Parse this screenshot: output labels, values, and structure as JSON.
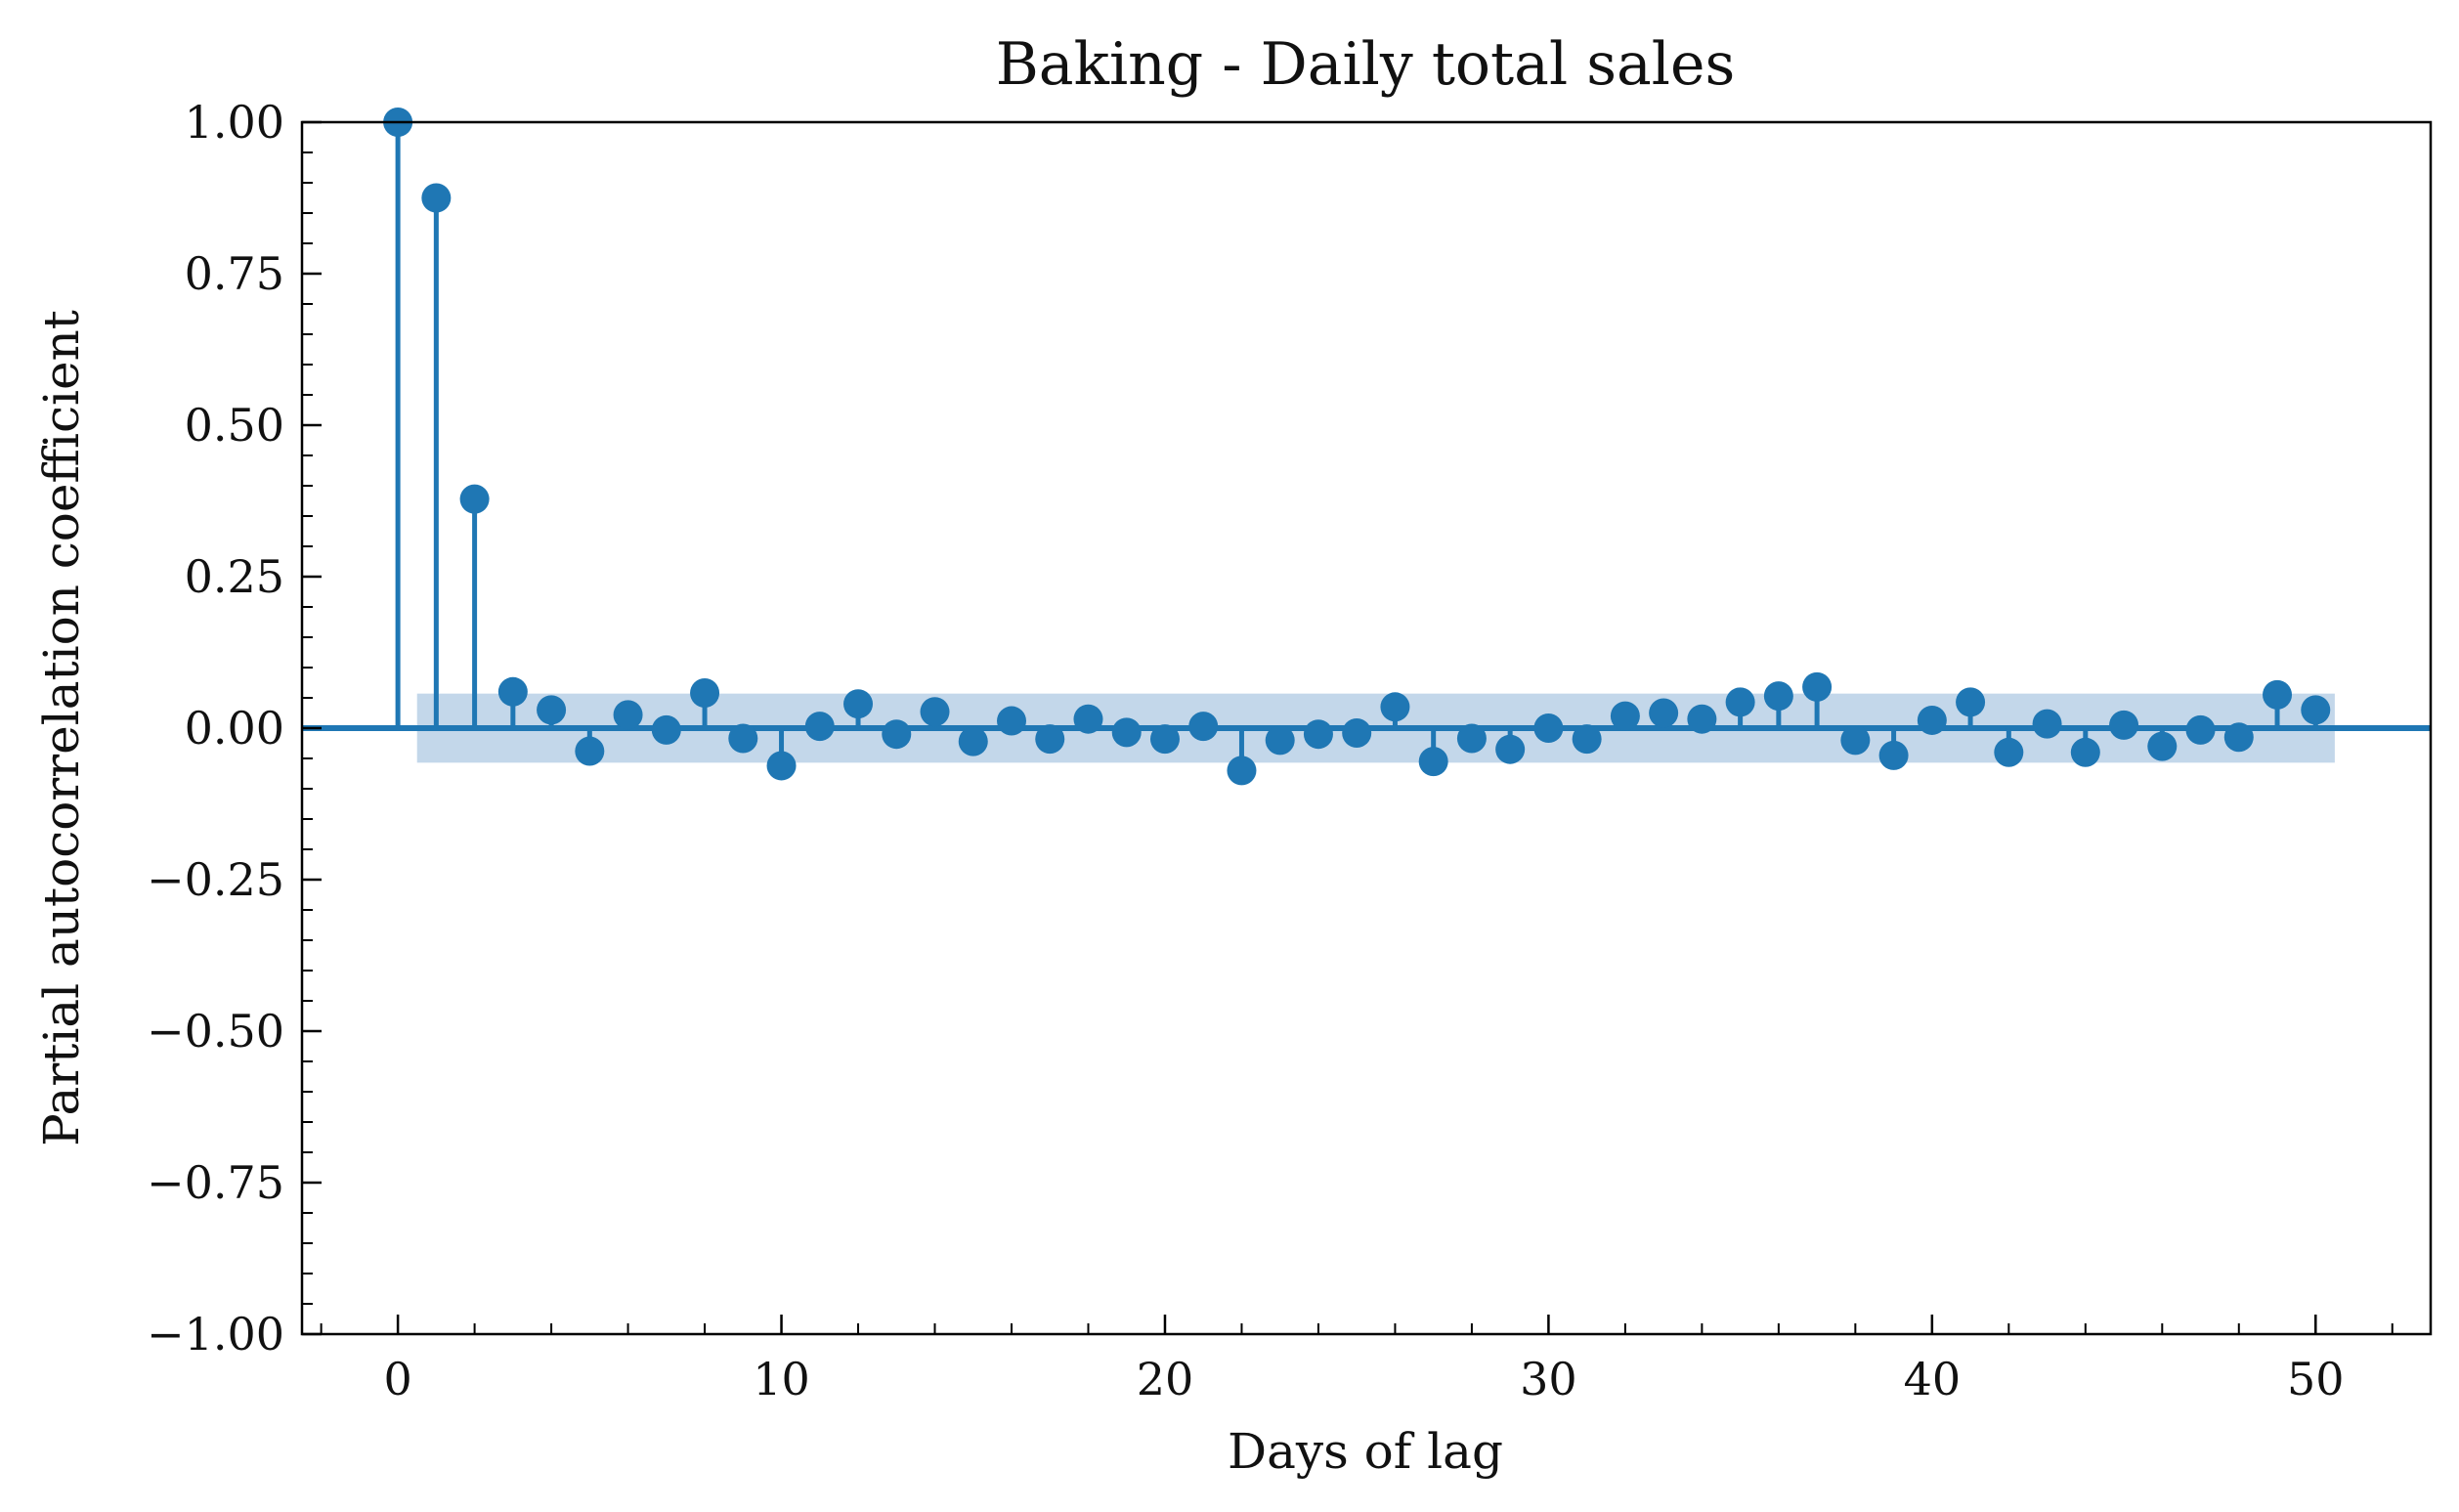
{
  "chart_data": {
    "type": "scatter",
    "subtype": "stem",
    "title": "Baking - Daily total sales",
    "xlabel": "Days of lag",
    "ylabel": "Partial autocorrelation coefficient",
    "xlim": [
      -2.5,
      53
    ],
    "ylim": [
      -1.0,
      1.0
    ],
    "x_ticks": [
      0,
      10,
      20,
      30,
      40,
      50
    ],
    "y_ticks": [
      -1.0,
      -0.75,
      -0.5,
      -0.25,
      0.0,
      0.25,
      0.5,
      0.75,
      1.0
    ],
    "x_tick_labels": [
      "0",
      "10",
      "20",
      "30",
      "40",
      "50"
    ],
    "y_tick_labels": [
      "−1.00",
      "−0.75",
      "−0.50",
      "−0.25",
      "0.00",
      "0.25",
      "0.50",
      "0.75",
      "1.00"
    ],
    "grid": false,
    "confidence_band": {
      "x_start": 0.5,
      "x_end": 50.5,
      "lower": -0.057,
      "upper": 0.057
    },
    "x": [
      0,
      1,
      2,
      3,
      4,
      5,
      6,
      7,
      8,
      9,
      10,
      11,
      12,
      13,
      14,
      15,
      16,
      17,
      18,
      19,
      20,
      21,
      22,
      23,
      24,
      25,
      26,
      27,
      28,
      29,
      30,
      31,
      32,
      33,
      34,
      35,
      36,
      37,
      38,
      39,
      40,
      41,
      42,
      43,
      44,
      45,
      46,
      47,
      48,
      49,
      50
    ],
    "values": [
      1.0,
      0.875,
      0.378,
      0.06,
      0.03,
      -0.038,
      0.022,
      -0.003,
      0.058,
      -0.017,
      -0.062,
      0.003,
      0.04,
      -0.01,
      0.027,
      -0.022,
      0.012,
      -0.018,
      0.015,
      -0.007,
      -0.018,
      0.003,
      -0.07,
      -0.02,
      -0.01,
      -0.008,
      0.035,
      -0.055,
      -0.017,
      -0.035,
      0.0,
      -0.018,
      0.02,
      0.025,
      0.015,
      0.043,
      0.053,
      0.068,
      -0.02,
      -0.045,
      0.013,
      0.043,
      -0.04,
      0.007,
      -0.04,
      0.005,
      -0.03,
      -0.003,
      -0.015,
      0.055,
      0.03
    ],
    "colors": {
      "series": "#1f77b4",
      "band": "#c3d7ea",
      "axis": "#000000"
    }
  }
}
